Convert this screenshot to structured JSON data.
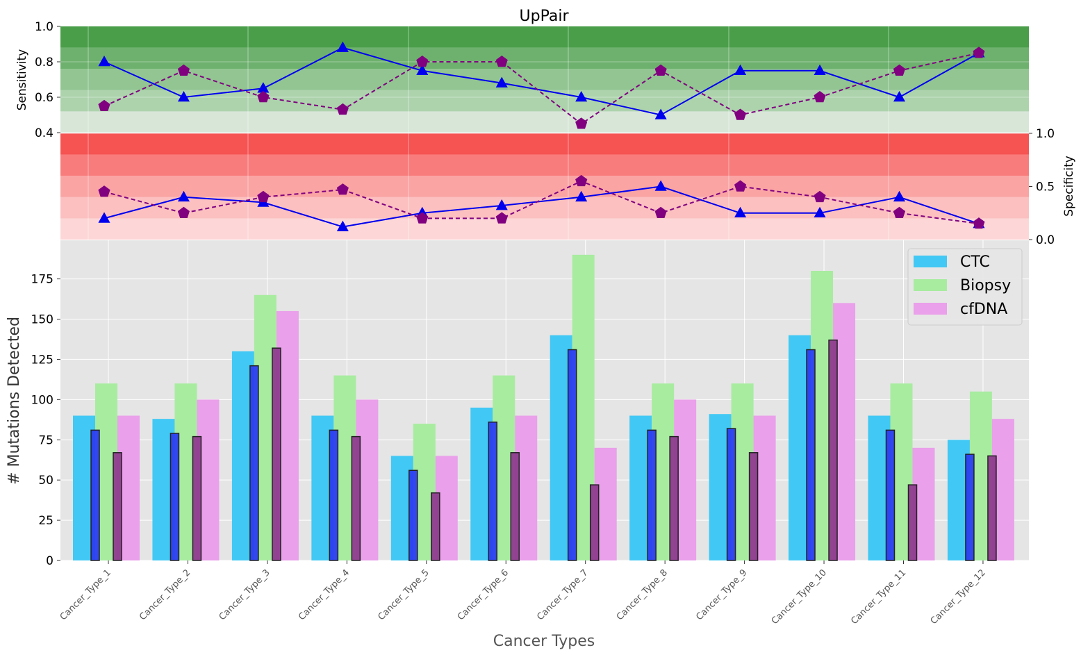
{
  "chart_data": [
    {
      "type": "line",
      "title": "UpPair",
      "ylabel": "Sensitivity",
      "ylim": [
        0.4,
        1.0
      ],
      "yticks": [
        "0.4",
        "0.6",
        "0.8",
        "1.0"
      ],
      "bands_color": "#4a9e4a",
      "categories": [
        "Cancer_Type_1",
        "Cancer_Type_2",
        "Cancer_Type_3",
        "Cancer_Type_4",
        "Cancer_Type_5",
        "Cancer_Type_6",
        "Cancer_Type_7",
        "Cancer_Type_8",
        "Cancer_Type_9",
        "Cancer_Type_10",
        "Cancer_Type_11",
        "Cancer_Type_12"
      ],
      "series": [
        {
          "values": [
            0.8,
            0.6,
            0.65,
            0.88,
            0.75,
            0.68,
            0.6,
            0.5,
            0.75,
            0.75,
            0.6,
            0.85
          ],
          "color": "#0000ee",
          "line": "solid",
          "marker": "triangle"
        },
        {
          "values": [
            0.55,
            0.75,
            0.6,
            0.53,
            0.8,
            0.8,
            0.45,
            0.75,
            0.5,
            0.6,
            0.75,
            0.85
          ],
          "color": "#800080",
          "line": "dashed",
          "marker": "pentagon"
        }
      ],
      "grid": true
    },
    {
      "type": "line",
      "ylabel": "Specificity",
      "ylim": [
        0.0,
        1.0
      ],
      "yticks": [
        "0.0",
        "0.5",
        "1.0"
      ],
      "axis_side": "right",
      "bands_color": "#f64a4a",
      "series": [
        {
          "values": [
            0.2,
            0.4,
            0.35,
            0.12,
            0.25,
            0.32,
            0.4,
            0.5,
            0.25,
            0.25,
            0.4,
            0.15
          ],
          "color": "#0000ee",
          "line": "solid",
          "marker": "triangle"
        },
        {
          "values": [
            0.45,
            0.25,
            0.4,
            0.47,
            0.2,
            0.2,
            0.55,
            0.25,
            0.5,
            0.4,
            0.25,
            0.15
          ],
          "color": "#800080",
          "line": "dashed",
          "marker": "pentagon"
        }
      ],
      "grid": true
    },
    {
      "type": "bar",
      "xlabel": "Cancer Types",
      "ylabel": "# Mutations Detected",
      "ylim": [
        0,
        199
      ],
      "yticks": [
        "0",
        "25",
        "50",
        "75",
        "100",
        "125",
        "150",
        "175"
      ],
      "categories": [
        "Cancer_Type_1",
        "Cancer_Type_2",
        "Cancer_Type_3",
        "Cancer_Type_4",
        "Cancer_Type_5",
        "Cancer_Type_6",
        "Cancer_Type_7",
        "Cancer_Type_8",
        "Cancer_Type_9",
        "Cancer_Type_10",
        "Cancer_Type_11",
        "Cancer_Type_12"
      ],
      "series": [
        {
          "name": "CTC",
          "values": [
            90,
            88,
            130,
            90,
            65,
            95,
            140,
            90,
            91,
            140,
            90,
            75
          ],
          "color": "#42c8f4"
        },
        {
          "name": "Biopsy",
          "values": [
            110,
            110,
            165,
            115,
            85,
            115,
            190,
            110,
            110,
            180,
            110,
            105
          ],
          "color": "#a8eca0"
        },
        {
          "name": "cfDNA",
          "values": [
            90,
            100,
            155,
            100,
            65,
            90,
            70,
            100,
            90,
            160,
            70,
            88
          ],
          "color": "#eaa0ea"
        }
      ],
      "inner_series": [
        {
          "values": [
            81,
            79,
            121,
            81,
            56,
            86,
            131,
            81,
            82,
            131,
            81,
            66
          ],
          "color": "#2b3ef0"
        },
        {
          "values": [
            67,
            77,
            132,
            77,
            42,
            67,
            47,
            77,
            67,
            137,
            47,
            65
          ],
          "color": "#8e3c8e"
        }
      ],
      "legend": "top-right",
      "grid": true
    }
  ]
}
